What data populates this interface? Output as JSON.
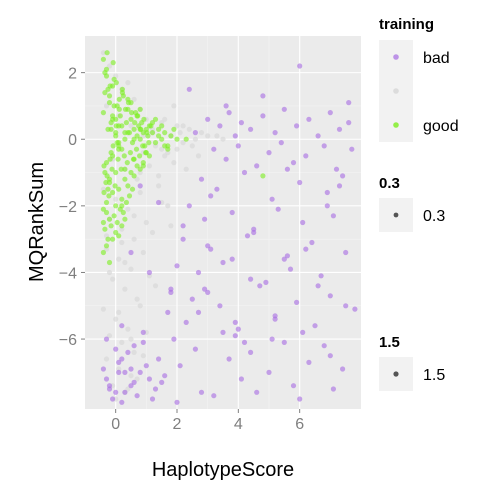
{
  "colors": {
    "panel_bg": "#ebebeb",
    "grid_major": "#ffffff",
    "grid_minor": "#f4f4f4",
    "bad": "#a66be3",
    "unlabeled": "#d9d9d9",
    "good": "#7cee1e",
    "size_key": "#555555"
  },
  "chart_data": {
    "type": "scatter",
    "title": "",
    "xlabel": "HaplotypeScore",
    "ylabel": "MQRankSum",
    "xlim": [
      -1.0,
      8.0
    ],
    "ylim": [
      -8.1,
      3.1
    ],
    "xticks": [
      0,
      2,
      4,
      6
    ],
    "xtick_labels": [
      "0",
      "2",
      "4",
      "6"
    ],
    "yticks": [
      2,
      0,
      -2,
      -4,
      -6
    ],
    "ytick_labels": [
      "2",
      "0",
      "−2",
      "−4",
      "−6"
    ],
    "grid": true,
    "legend_placement": "right",
    "legend": {
      "color_title": "training",
      "color_entries": [
        {
          "label": "bad",
          "color": "#a66be3"
        },
        {
          "label": "",
          "color": "#d9d9d9"
        },
        {
          "label": "good",
          "color": "#7cee1e"
        }
      ],
      "alpha_title": "0.3",
      "alpha_label": "0.3",
      "size_title": "1.5",
      "size_label": "1.5"
    },
    "series": [
      {
        "name": "bad",
        "color": "#a66be3",
        "x": [
          -0.3,
          -0.2,
          0.1,
          0.3,
          0.5,
          -0.1,
          0.2,
          0.6,
          0.8,
          1.0,
          1.3,
          0.0,
          -0.4,
          0.4,
          0.9,
          1.6,
          0.2,
          -0.2,
          0.7,
          1.1,
          0.1,
          0.3,
          -0.3,
          0.5,
          1.4,
          0.0,
          0.6,
          0.2,
          0.9,
          2.6,
          3.0,
          3.4,
          3.7,
          3.9,
          4.1,
          4.4,
          4.8,
          5.2,
          5.5,
          5.9,
          6.3,
          6.6,
          7.0,
          7.3,
          7.6,
          3.2,
          3.6,
          4.0,
          4.6,
          5.0,
          5.4,
          5.8,
          6.2,
          6.8,
          7.2,
          7.7,
          2.8,
          3.3,
          4.2,
          5.1,
          6.0,
          6.9,
          7.4,
          2.4,
          2.9,
          3.8,
          4.5,
          5.3,
          6.1,
          7.1,
          2.2,
          3.1,
          4.3,
          5.6,
          6.4,
          7.5,
          2.0,
          2.7,
          3.5,
          4.9,
          5.7,
          6.7,
          1.8,
          2.5,
          3.0,
          4.7,
          5.9,
          7.0,
          1.7,
          2.3,
          3.4,
          4.0,
          5.2,
          6.5,
          7.8,
          1.9,
          2.6,
          3.9,
          4.4,
          5.5,
          6.8,
          2.1,
          3.7,
          5.0,
          6.3,
          7.4,
          1.5,
          2.8,
          4.1,
          5.8,
          7.1,
          1.2,
          2.0,
          3.2,
          4.6,
          6.0,
          6.0,
          4.8,
          3.6,
          2.4,
          7.6,
          0.8,
          1.4,
          2.2,
          3.0,
          3.8,
          4.4,
          5.2,
          6.1,
          7.0,
          0.5,
          1.1,
          1.8,
          2.7,
          3.5,
          4.2,
          5.5,
          6.6,
          7.5,
          3.1,
          4.5,
          5.6,
          6.2,
          7.3,
          2.9,
          3.9,
          5.1,
          6.9
        ],
        "y": [
          -7.2,
          -7.5,
          -7.0,
          -7.6,
          -6.9,
          -7.8,
          -6.6,
          -7.3,
          -7.0,
          -6.8,
          -7.5,
          -6.3,
          -6.9,
          -6.4,
          -6.1,
          -7.1,
          -7.9,
          -7.4,
          -7.7,
          -7.2,
          -6.7,
          -7.0,
          -6.0,
          -7.4,
          -6.6,
          -7.6,
          -6.2,
          -5.6,
          -5.8,
          0.2,
          0.6,
          0.4,
          0.8,
          0.1,
          0.5,
          0.3,
          0.7,
          0.2,
          0.9,
          0.4,
          0.6,
          0.1,
          0.8,
          0.3,
          0.5,
          -0.3,
          -0.6,
          -0.2,
          -0.8,
          -0.4,
          -0.1,
          -0.7,
          -0.5,
          -0.2,
          -0.9,
          -0.3,
          -1.2,
          -1.5,
          -1.0,
          -1.8,
          -1.3,
          -1.6,
          -1.1,
          -2.0,
          -2.4,
          -2.2,
          -2.7,
          -2.1,
          -2.5,
          -2.3,
          -3.0,
          -3.3,
          -2.9,
          -3.5,
          -3.1,
          -3.4,
          -3.8,
          -4.0,
          -3.7,
          -4.3,
          -3.9,
          -4.1,
          -4.5,
          -4.8,
          -4.6,
          -4.4,
          -4.9,
          -4.7,
          -5.2,
          -5.5,
          -5.0,
          -5.7,
          -5.3,
          -5.6,
          -5.1,
          -6.0,
          -6.3,
          -5.9,
          -6.4,
          -6.1,
          -6.2,
          -6.8,
          -6.6,
          -7.0,
          -6.7,
          -6.9,
          -7.3,
          -7.6,
          -7.2,
          -7.4,
          -7.5,
          -7.8,
          -7.9,
          -7.7,
          -7.6,
          -7.8,
          2.2,
          1.3,
          1.0,
          1.5,
          1.1,
          -1.4,
          -1.9,
          -2.6,
          -3.2,
          -3.6,
          -4.2,
          -5.4,
          -5.8,
          -6.5,
          -3.4,
          -4.0,
          -4.6,
          -5.2,
          -5.8,
          -6.1,
          -3.6,
          -4.4,
          -5.0,
          -1.7,
          -2.8,
          -0.9,
          -3.3,
          -1.4,
          -4.5,
          -5.5,
          -6.0,
          -2.0
        ],
        "r": 2.6,
        "opacity": 0.6
      },
      {
        "name": "",
        "color": "#d9d9d9",
        "x": [
          -0.4,
          -0.2,
          0.0,
          0.2,
          0.4,
          0.6,
          0.8,
          1.0,
          1.2,
          1.5,
          1.8,
          2.1,
          2.4,
          -0.3,
          0.1,
          0.5,
          0.9,
          1.3,
          1.7,
          2.2,
          -0.1,
          0.3,
          0.7,
          1.1,
          1.6,
          2.0,
          -0.4,
          0.0,
          0.4,
          0.8,
          1.4,
          1.9,
          2.6,
          -0.2,
          0.2,
          0.6,
          1.0,
          1.5,
          2.3,
          3.0,
          -0.3,
          0.1,
          0.5,
          0.9,
          1.2,
          1.7,
          -0.1,
          0.3,
          0.7,
          1.1,
          -0.4,
          0.0,
          0.4,
          0.8,
          1.3,
          -0.2,
          0.2,
          0.6,
          1.0,
          -0.3,
          0.1,
          0.5,
          0.9,
          -0.1,
          0.3,
          0.7,
          0.0,
          0.4,
          0.2,
          0.6,
          -0.2,
          0.1,
          0.5,
          1.4,
          1.8,
          2.8,
          3.3,
          2.5,
          2.0,
          1.6,
          1.2,
          0.9,
          1.9,
          2.7,
          3.5,
          0.3,
          -0.3,
          0.8,
          1.5,
          2.2
        ],
        "y": [
          2.6,
          2.2,
          1.9,
          1.5,
          1.7,
          1.2,
          0.9,
          0.6,
          0.3,
          0.5,
          0.1,
          0.2,
          0.3,
          1.0,
          0.7,
          0.4,
          0.1,
          -0.2,
          -0.4,
          -0.1,
          -0.6,
          -0.9,
          -1.2,
          -0.8,
          -0.5,
          -0.3,
          -1.5,
          -1.8,
          -2.1,
          -1.6,
          -1.1,
          -0.7,
          0.0,
          -2.4,
          -2.7,
          -3.0,
          -2.5,
          -1.9,
          -0.9,
          0.1,
          -3.3,
          -3.6,
          -3.9,
          -3.4,
          -2.8,
          -2.0,
          -4.2,
          -4.5,
          -4.8,
          -4.1,
          -5.1,
          -5.4,
          -5.7,
          -5.0,
          -4.4,
          -5.9,
          -6.1,
          -6.4,
          -5.8,
          -6.6,
          -6.9,
          -7.1,
          -6.5,
          -7.4,
          -7.6,
          -7.2,
          -7.8,
          -7.5,
          -3.1,
          -2.3,
          -4.0,
          -5.2,
          -6.0,
          -1.4,
          -2.6,
          0.2,
          0.1,
          -0.2,
          0.4,
          0.6,
          0.2,
          -0.4,
          1.0,
          -0.5,
          0.0,
          -3.7,
          -2.9,
          -1.0,
          -0.3,
          0.4
        ],
        "r": 2.6,
        "opacity": 0.7
      },
      {
        "name": "good",
        "color": "#7cee1e",
        "x": [
          -0.4,
          -0.35,
          -0.3,
          -0.25,
          -0.2,
          -0.15,
          -0.1,
          -0.05,
          0.0,
          0.05,
          0.1,
          0.15,
          0.2,
          0.25,
          0.3,
          0.35,
          0.4,
          0.45,
          0.5,
          0.55,
          0.6,
          0.65,
          0.7,
          0.75,
          0.8,
          0.85,
          0.9,
          0.95,
          1.0,
          1.05,
          1.1,
          1.2,
          1.3,
          1.4,
          1.5,
          1.6,
          1.7,
          1.8,
          2.0,
          -0.38,
          -0.32,
          -0.28,
          -0.22,
          -0.18,
          -0.12,
          -0.08,
          -0.02,
          0.02,
          0.08,
          0.12,
          0.18,
          0.22,
          0.28,
          0.32,
          0.38,
          0.42,
          0.48,
          0.52,
          0.58,
          0.62,
          0.68,
          0.72,
          0.78,
          0.82,
          0.88,
          0.92,
          0.98,
          1.02,
          1.08,
          1.15,
          -0.4,
          -0.3,
          -0.2,
          -0.1,
          0.0,
          0.1,
          0.2,
          0.3,
          0.4,
          0.5,
          0.6,
          0.7,
          0.8,
          0.9,
          -0.35,
          -0.25,
          -0.15,
          -0.05,
          0.05,
          0.15,
          0.25,
          0.35,
          0.45,
          0.55,
          -0.4,
          -0.3,
          -0.2,
          -0.1,
          0.0,
          0.1,
          0.2,
          0.3,
          -0.38,
          -0.28,
          -0.18,
          -0.08,
          0.02,
          0.12,
          0.22,
          -0.4,
          -0.3,
          -0.2,
          -0.1,
          0.0,
          0.1,
          -0.35,
          -0.25,
          -0.15,
          -0.05,
          0.05,
          -0.4,
          -0.3,
          -0.2,
          -0.1,
          -0.35,
          -0.25,
          -0.15,
          0.0,
          0.2,
          0.4,
          0.6,
          0.8,
          1.0,
          1.2,
          1.4,
          1.6,
          1.9,
          0.3,
          0.7,
          1.1,
          1.5,
          2.3,
          0.1,
          0.5,
          0.9,
          1.3,
          0.6,
          1.7,
          -0.2,
          0.3,
          0.8,
          4.8,
          0.0,
          0.4,
          -0.3,
          0.2,
          0.1,
          -0.1
        ],
        "y": [
          0.8,
          1.4,
          2.1,
          0.3,
          1.1,
          -0.4,
          0.6,
          1.8,
          0.2,
          1.0,
          -0.2,
          0.7,
          0.4,
          1.3,
          0.0,
          0.5,
          0.9,
          0.2,
          0.6,
          -0.1,
          0.3,
          0.8,
          0.1,
          0.4,
          0.0,
          0.5,
          0.2,
          -0.2,
          0.3,
          0.1,
          0.4,
          0.2,
          -0.1,
          0.3,
          0.0,
          0.2,
          -0.2,
          0.1,
          0.0,
          -0.8,
          -1.3,
          2.6,
          -1.7,
          1.6,
          -0.9,
          2.3,
          -1.4,
          1.7,
          -0.6,
          1.2,
          -0.9,
          1.5,
          -0.5,
          0.9,
          -0.7,
          1.1,
          -0.4,
          0.8,
          -0.6,
          0.5,
          -0.3,
          0.7,
          -0.5,
          0.3,
          -0.2,
          0.6,
          -0.4,
          0.2,
          -0.1,
          0.4,
          -2.1,
          -1.9,
          -2.4,
          -1.6,
          -2.0,
          -1.5,
          -1.8,
          -1.2,
          -1.4,
          -1.0,
          -1.1,
          -0.8,
          -0.9,
          -0.7,
          -2.7,
          -3.0,
          -2.6,
          -2.3,
          -2.5,
          -2.1,
          -2.2,
          -1.9,
          -1.7,
          -1.5,
          -3.4,
          -3.2,
          -3.7,
          -3.0,
          -2.8,
          -2.9,
          -2.6,
          -2.4,
          -1.6,
          -1.1,
          -0.6,
          -0.2,
          0.4,
          0.9,
          1.4,
          2.4,
          1.9,
          1.3,
          0.7,
          0.1,
          -0.3,
          -1.0,
          -1.5,
          0.5,
          1.0,
          -0.1,
          -2.5,
          -2.2,
          -1.3,
          -0.5,
          2.0,
          1.5,
          0.3,
          0.6,
          -0.3,
          1.2,
          -0.6,
          0.9,
          -0.4,
          0.5,
          0.1,
          -0.2,
          0.3,
          0.2,
          0.7,
          -0.5,
          0.4,
          0.0,
          -0.1,
          1.1,
          -0.8,
          0.6,
          0.0,
          -0.3,
          -1.2,
          -0.9,
          0.3,
          -1.1,
          -1.0,
          0.2,
          -0.7,
          -2.0,
          0.4,
          1.6
        ],
        "r": 2.6,
        "opacity": 0.6
      }
    ]
  }
}
